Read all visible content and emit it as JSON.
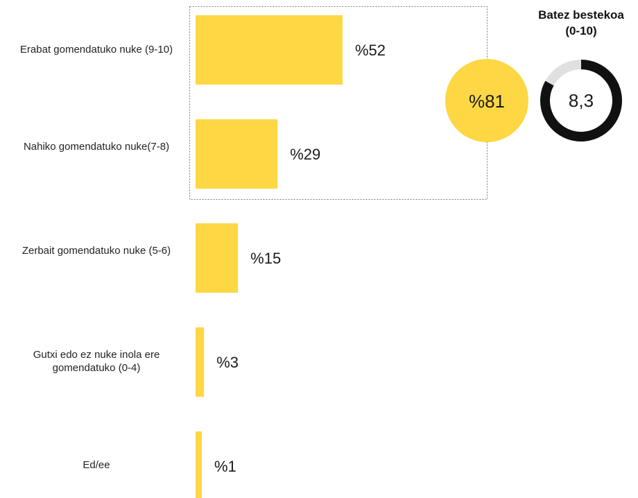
{
  "chart_data": {
    "type": "bar",
    "orientation": "horizontal",
    "categories": [
      "Erabat gomendatuko nuke (9-10)",
      "Nahiko gomendatuko nuke(7-8)",
      "Zerbait gomendatuko nuke (5-6)",
      "Gutxi edo ez nuke inola ere gomendatuko (0-4)",
      "Ed/ee"
    ],
    "values": [
      52,
      29,
      15,
      3,
      1
    ],
    "value_labels": [
      "%52",
      "%29",
      "%15",
      "%3",
      "%1"
    ],
    "bar_color": "#FDD744",
    "grouped_box": {
      "categories": [
        "Erabat gomendatuko nuke (9-10)",
        "Nahiko gomendatuko nuke(7-8)"
      ],
      "style": "dotted"
    },
    "summary_circle": {
      "value": 81,
      "label": "%81",
      "color": "#FDD744"
    },
    "average": {
      "title": "Batez bestekoa",
      "subtitle": "(0-10)",
      "value": 8.3,
      "label": "8,3",
      "scale_max": 10,
      "ring_color": "#111111",
      "track_color": "#E0E0E0"
    }
  }
}
